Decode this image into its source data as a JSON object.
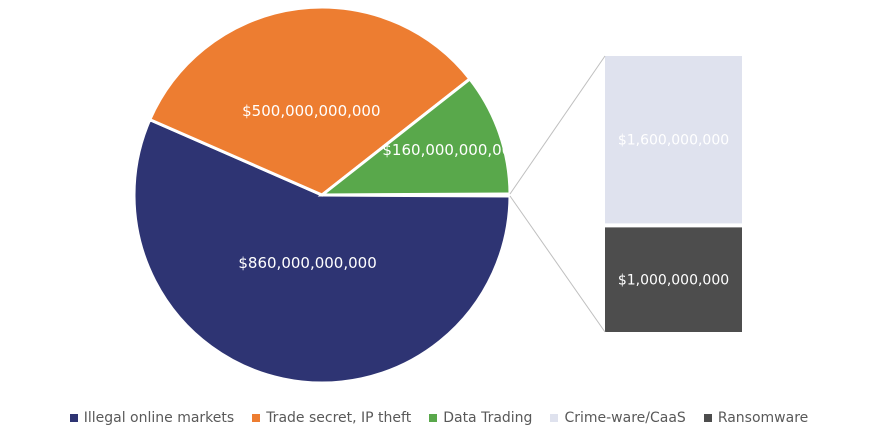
{
  "chart_data": {
    "type": "pie",
    "subtype": "pie-of-pie (bar of pie)",
    "slices": [
      {
        "name": "Illegal online markets",
        "value": 860000000000,
        "label": "$860,000,000,000",
        "color": "#2e3473"
      },
      {
        "name": "Trade secret, IP theft",
        "value": 500000000000,
        "label": "$500,000,000,000",
        "color": "#ed7d31"
      },
      {
        "name": "Data Trading",
        "value": 160000000000,
        "label": "$160,000,000,000",
        "color": "#59a84b"
      },
      {
        "name": "Crime-ware/CaaS",
        "value": 1600000000,
        "label": "$1,600,000,000",
        "color": "#dfe2ee",
        "in_secondary": true
      },
      {
        "name": "Ransomware",
        "value": 1000000000,
        "label": "$1,000,000,000",
        "color": "#4d4d4d",
        "in_secondary": true
      }
    ],
    "legend_position": "bottom"
  }
}
